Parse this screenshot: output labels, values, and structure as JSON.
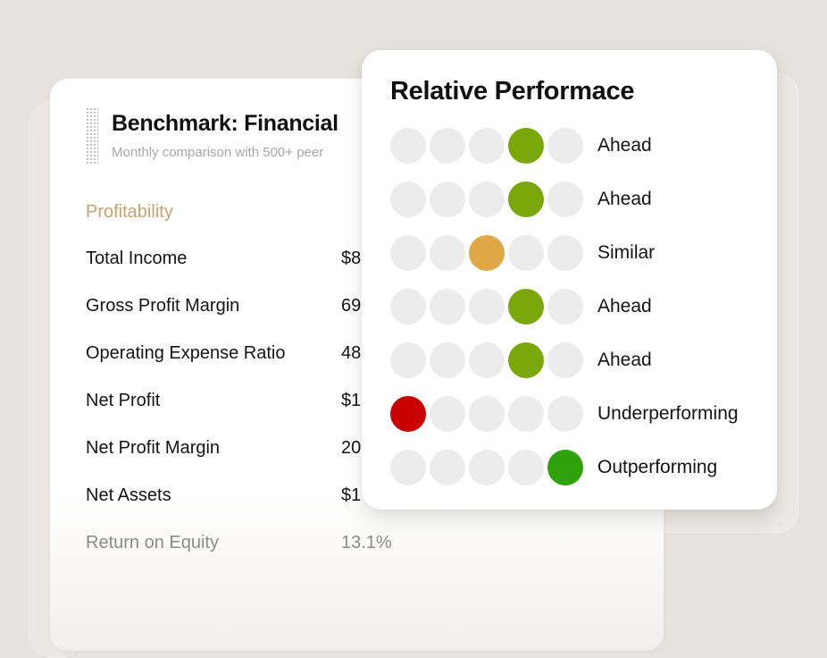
{
  "benchmark": {
    "title": "Benchmark: Financial",
    "subtitle": "Monthly comparison with 500+ peer",
    "section": "Profitability",
    "metrics": [
      {
        "label": "Total Income",
        "value": "$8"
      },
      {
        "label": "Gross Profit Margin",
        "value": "69"
      },
      {
        "label": "Operating Expense Ratio",
        "value": "48"
      },
      {
        "label": "Net Profit",
        "value": "$1"
      },
      {
        "label": "Net Profit Margin",
        "value": "20"
      },
      {
        "label": "Net Assets",
        "value": "$1"
      },
      {
        "label": "Return on Equity",
        "value": "13.1%"
      }
    ]
  },
  "performance": {
    "title": "Relative Performace",
    "colors": {
      "empty": "#ececec",
      "ahead": "#7aa80a",
      "similar": "#e0a845",
      "underperforming": "#c80000",
      "outperforming": "#2fa10a"
    },
    "rows": [
      {
        "label": "Ahead",
        "level": 4,
        "status": "ahead"
      },
      {
        "label": "Ahead",
        "level": 4,
        "status": "ahead"
      },
      {
        "label": "Similar",
        "level": 3,
        "status": "similar"
      },
      {
        "label": "Ahead",
        "level": 4,
        "status": "ahead"
      },
      {
        "label": "Ahead",
        "level": 4,
        "status": "ahead"
      },
      {
        "label": "Underperforming",
        "level": 1,
        "status": "underperforming"
      },
      {
        "label": "Outperforming",
        "level": 5,
        "status": "outperforming"
      }
    ]
  }
}
